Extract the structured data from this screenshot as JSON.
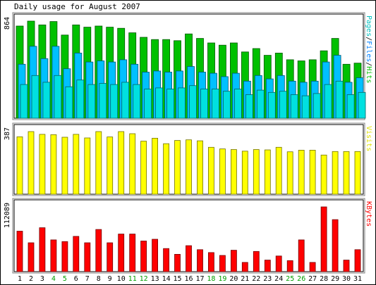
{
  "chart_data": {
    "type": "bar",
    "title": "Daily usage for August 2007",
    "categories": [
      "1",
      "2",
      "3",
      "4",
      "5",
      "6",
      "7",
      "8",
      "9",
      "10",
      "11",
      "12",
      "13",
      "14",
      "15",
      "16",
      "17",
      "18",
      "19",
      "20",
      "21",
      "22",
      "23",
      "24",
      "25",
      "26",
      "27",
      "28",
      "29",
      "30",
      "31"
    ],
    "weekend_days": [
      "4",
      "5",
      "11",
      "12",
      "18",
      "19",
      "25",
      "26"
    ],
    "panels": [
      {
        "id": "hits",
        "max_label": "864",
        "ymax": 864,
        "right_label_parts": [
          {
            "text": "Pages",
            "color": "#00c0c0"
          },
          {
            "text": "/",
            "color": "#000000"
          },
          {
            "text": "Files",
            "color": "#0080ff"
          },
          {
            "text": "/",
            "color": "#000000"
          },
          {
            "text": "Hits",
            "color": "#00c000"
          }
        ],
        "series": [
          {
            "name": "Hits",
            "color": "#00c000",
            "values": [
              820,
              864,
              830,
              860,
              740,
              830,
              810,
              820,
              810,
              800,
              760,
              720,
              700,
              700,
              690,
              750,
              710,
              670,
              650,
              670,
              590,
              620,
              560,
              580,
              520,
              510,
              520,
              600,
              710,
              480,
              490
            ]
          },
          {
            "name": "Files",
            "color": "#00c0ff",
            "values": [
              480,
              640,
              530,
              640,
              440,
              580,
              500,
              510,
              500,
              520,
              480,
              410,
              420,
              410,
              420,
              460,
              410,
              400,
              370,
              400,
              330,
              380,
              350,
              380,
              330,
              320,
              330,
              500,
              560,
              320,
              360
            ]
          },
          {
            "name": "Pages",
            "color": "#00e0e0",
            "values": [
              300,
              380,
              320,
              380,
              280,
              340,
              300,
              310,
              300,
              320,
              300,
              260,
              270,
              260,
              270,
              290,
              260,
              260,
              240,
              260,
              210,
              250,
              230,
              240,
              210,
              200,
              220,
              300,
              330,
              210,
              230
            ]
          }
        ]
      },
      {
        "id": "visits",
        "max_label": "387",
        "ymax": 387,
        "right_label_parts": [
          {
            "text": "Visits",
            "color": "#e0e000"
          }
        ],
        "series": [
          {
            "name": "Visits",
            "color": "#ffff00",
            "values": [
              355,
              387,
              370,
              368,
              352,
              370,
              348,
              387,
              354,
              387,
              374,
              328,
              346,
              312,
              332,
              336,
              330,
              290,
              280,
              276,
              266,
              276,
              274,
              290,
              262,
              272,
              272,
              242,
              264,
              264,
              264
            ]
          }
        ]
      },
      {
        "id": "kbytes",
        "max_label": "112089",
        "ymax": 112089,
        "right_label_parts": [
          {
            "text": "KBytes",
            "color": "#ff0000"
          }
        ],
        "series": [
          {
            "name": "KBytes",
            "color": "#ff0000",
            "values": [
              70000,
              50000,
              76000,
              55000,
              52000,
              61000,
              50000,
              73000,
              50000,
              65000,
              65000,
              53000,
              56000,
              40000,
              30000,
              45000,
              38000,
              33000,
              28000,
              37000,
              16000,
              35000,
              20000,
              27000,
              19000,
              55000,
              16000,
              112089,
              90000,
              20000,
              38000
            ]
          }
        ]
      }
    ]
  }
}
